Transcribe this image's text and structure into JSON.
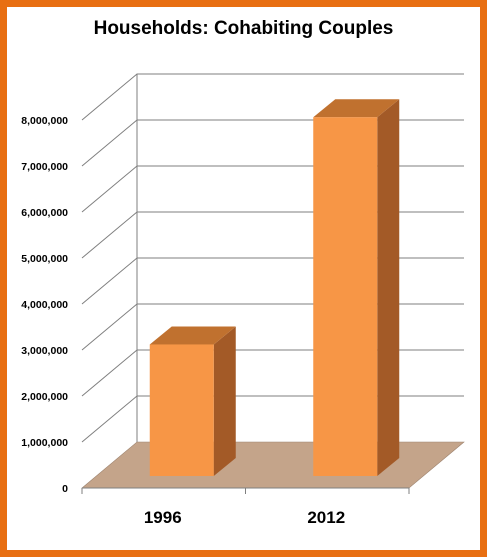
{
  "chart_data": {
    "type": "bar",
    "title": "Households:  Cohabiting Couples",
    "categories": [
      "1996",
      "2012"
    ],
    "values": [
      2860000,
      7800000
    ],
    "ylim": [
      0,
      8000000
    ],
    "yticks": [
      "0",
      "1,000,000",
      "2,000,000",
      "3,000,000",
      "4,000,000",
      "5,000,000",
      "6,000,000",
      "7,000,000",
      "8,000,000"
    ],
    "xlabel": "",
    "ylabel": "",
    "grid": true,
    "style": "3d-column",
    "colors": {
      "frame": "#E86F12",
      "bar_front": "#F79646",
      "bar_top": "#C0712F",
      "bar_side": "#A35A27",
      "floor": "#C4A48A",
      "grid": "#7F7F7F"
    }
  }
}
